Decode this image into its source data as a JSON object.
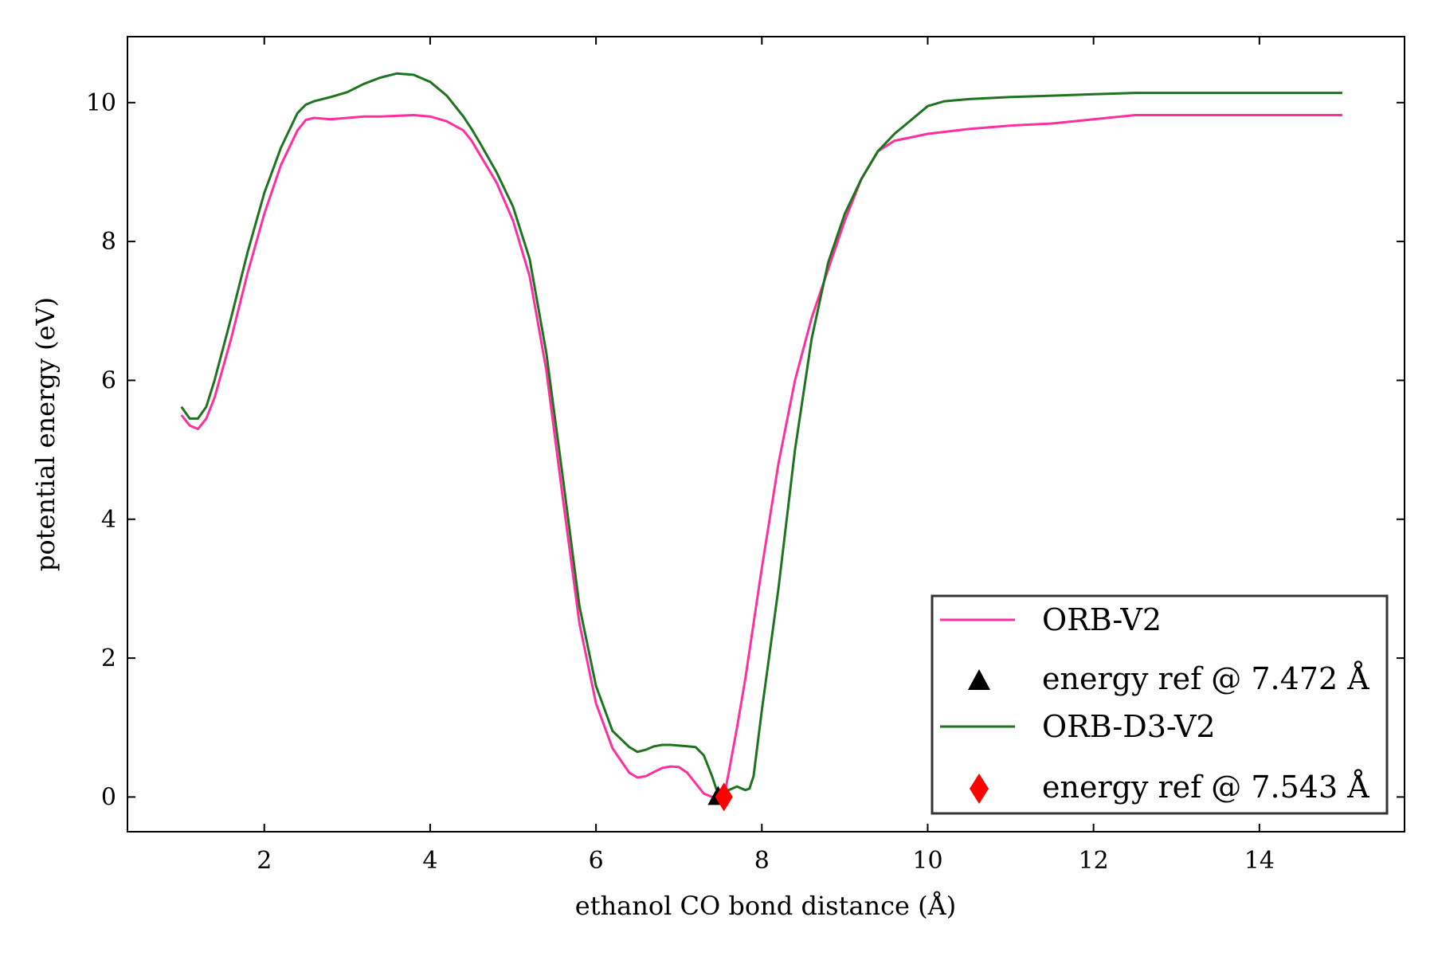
{
  "chart_data": {
    "type": "line",
    "title": "",
    "xlabel": "ethanol CO bond distance (Å)",
    "ylabel": "potential energy (eV)",
    "xlim": [
      0.35,
      15.75
    ],
    "ylim": [
      -0.5,
      10.95
    ],
    "xticks": [
      2,
      4,
      6,
      8,
      10,
      12,
      14
    ],
    "yticks": [
      0,
      2,
      4,
      6,
      8,
      10
    ],
    "grid": false,
    "legend_position": "bottom-right",
    "series": [
      {
        "name": "ORB-V2",
        "color": "#ff2fa0",
        "x": [
          1.0,
          1.1,
          1.2,
          1.3,
          1.4,
          1.6,
          1.8,
          2.0,
          2.2,
          2.4,
          2.5,
          2.6,
          2.7,
          2.8,
          3.0,
          3.2,
          3.4,
          3.6,
          3.8,
          4.0,
          4.2,
          4.4,
          4.5,
          4.6,
          4.8,
          5.0,
          5.2,
          5.4,
          5.6,
          5.8,
          6.0,
          6.2,
          6.4,
          6.5,
          6.6,
          6.7,
          6.8,
          6.9,
          7.0,
          7.1,
          7.2,
          7.3,
          7.4,
          7.47,
          7.55,
          7.6,
          7.7,
          7.8,
          7.9,
          8.0,
          8.2,
          8.4,
          8.6,
          8.8,
          9.0,
          9.2,
          9.4,
          9.6,
          9.8,
          10.0,
          10.5,
          11.0,
          11.5,
          12.0,
          12.5,
          13.0,
          13.5,
          14.0,
          14.5,
          15.0
        ],
        "y": [
          5.5,
          5.35,
          5.3,
          5.45,
          5.75,
          6.6,
          7.55,
          8.4,
          9.1,
          9.6,
          9.75,
          9.78,
          9.77,
          9.76,
          9.78,
          9.8,
          9.8,
          9.81,
          9.82,
          9.8,
          9.73,
          9.6,
          9.45,
          9.25,
          8.85,
          8.3,
          7.5,
          6.15,
          4.3,
          2.5,
          1.35,
          0.7,
          0.35,
          0.28,
          0.3,
          0.36,
          0.42,
          0.44,
          0.43,
          0.35,
          0.2,
          0.05,
          0.0,
          0.0,
          0.05,
          0.35,
          1.0,
          1.7,
          2.5,
          3.3,
          4.8,
          6.0,
          6.9,
          7.6,
          8.3,
          8.9,
          9.3,
          9.45,
          9.5,
          9.55,
          9.62,
          9.67,
          9.7,
          9.76,
          9.82,
          9.82,
          9.82,
          9.82,
          9.82,
          9.82
        ]
      },
      {
        "name": "ORB-D3-V2",
        "color": "#1e731e",
        "x": [
          1.0,
          1.1,
          1.2,
          1.3,
          1.4,
          1.6,
          1.8,
          2.0,
          2.2,
          2.4,
          2.5,
          2.6,
          2.7,
          2.8,
          3.0,
          3.2,
          3.4,
          3.6,
          3.8,
          4.0,
          4.2,
          4.4,
          4.5,
          4.6,
          4.8,
          5.0,
          5.2,
          5.4,
          5.6,
          5.8,
          6.0,
          6.2,
          6.4,
          6.5,
          6.6,
          6.7,
          6.8,
          6.9,
          7.0,
          7.1,
          7.2,
          7.3,
          7.4,
          7.47,
          7.55,
          7.6,
          7.7,
          7.8,
          7.85,
          7.9,
          8.0,
          8.2,
          8.4,
          8.6,
          8.8,
          9.0,
          9.2,
          9.4,
          9.6,
          9.8,
          10.0,
          10.2,
          10.5,
          11.0,
          11.5,
          12.0,
          12.5,
          13.0,
          13.5,
          14.0,
          14.5,
          15.0
        ],
        "y": [
          5.62,
          5.45,
          5.45,
          5.62,
          6.0,
          6.9,
          7.85,
          8.7,
          9.35,
          9.85,
          9.97,
          10.02,
          10.05,
          10.08,
          10.15,
          10.27,
          10.36,
          10.42,
          10.4,
          10.3,
          10.1,
          9.8,
          9.62,
          9.42,
          9.0,
          8.5,
          7.75,
          6.4,
          4.6,
          2.75,
          1.6,
          0.95,
          0.72,
          0.65,
          0.68,
          0.73,
          0.75,
          0.75,
          0.74,
          0.73,
          0.72,
          0.6,
          0.3,
          0.05,
          0.02,
          0.1,
          0.15,
          0.1,
          0.12,
          0.3,
          1.25,
          3.0,
          5.0,
          6.6,
          7.7,
          8.4,
          8.9,
          9.3,
          9.55,
          9.75,
          9.95,
          10.02,
          10.05,
          10.08,
          10.1,
          10.12,
          10.14,
          10.14,
          10.14,
          10.14,
          10.14,
          10.14
        ]
      }
    ],
    "markers": [
      {
        "name": "energy ref @ 7.472 Å",
        "shape": "triangle",
        "color": "#000000",
        "x": 7.472,
        "y": 0.0
      },
      {
        "name": "energy ref @ 7.543 Å",
        "shape": "diamond",
        "color": "#ff0000",
        "x": 7.543,
        "y": 0.0
      }
    ]
  }
}
